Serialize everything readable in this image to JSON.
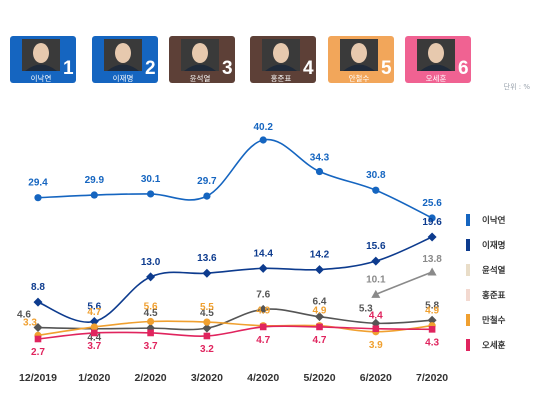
{
  "header": {
    "unit": "단위 : %",
    "cards": [
      {
        "number": "1",
        "name": "이낙연",
        "color": "#1565c0"
      },
      {
        "number": "2",
        "name": "이재명",
        "color": "#1565c0"
      },
      {
        "number": "3",
        "name": "윤석열",
        "color": "#5d4037"
      },
      {
        "number": "4",
        "name": "홍준표",
        "color": "#5d4037"
      },
      {
        "number": "5",
        "name": "안철수",
        "color": "#f2a65a"
      },
      {
        "number": "6",
        "name": "오세훈",
        "color": "#f06292"
      }
    ]
  },
  "chart_data": {
    "type": "line",
    "categories": [
      "12/2019",
      "1/2020",
      "2/2020",
      "3/2020",
      "4/2020",
      "5/2020",
      "6/2020",
      "7/2020"
    ],
    "series": [
      {
        "name": "이낙연",
        "color": "#1565c0",
        "marker": "circle",
        "values": [
          29.4,
          29.9,
          30.1,
          29.7,
          40.2,
          34.3,
          30.8,
          25.6
        ],
        "labels": [
          "29.4",
          "29.9",
          "30.1",
          "29.7",
          "40.2",
          "34.3",
          "30.8",
          "25.6"
        ]
      },
      {
        "name": "이재명",
        "color": "#0d3b8e",
        "marker": "diamond",
        "values": [
          8.8,
          5.6,
          13.0,
          13.6,
          14.4,
          14.2,
          15.6,
          19.6
        ],
        "labels": [
          "8.8",
          "5.6",
          "13.0",
          "13.6",
          "14.4",
          "14.2",
          "15.6",
          "19.6"
        ]
      },
      {
        "name": "윤석열",
        "color": "#8a8a8a",
        "marker": "triangle",
        "values": [
          null,
          null,
          null,
          null,
          null,
          null,
          10.1,
          13.8
        ],
        "labels": [
          "",
          "",
          "",
          "",
          "",
          "",
          "10.1",
          "13.8"
        ]
      },
      {
        "name": "홍준표",
        "color": "#555555",
        "marker": "diamond",
        "values": [
          4.6,
          4.4,
          4.5,
          4.5,
          7.6,
          6.4,
          5.3,
          5.8
        ],
        "labels": [
          "4.6",
          "4.4",
          "4.5",
          "4.5",
          "7.6",
          "6.4",
          "5.3",
          "5.8"
        ]
      },
      {
        "name": "안철수",
        "color": "#f0a030",
        "marker": "circle",
        "values": [
          3.3,
          4.7,
          5.6,
          5.5,
          4.9,
          4.9,
          3.9,
          4.9
        ],
        "labels": [
          "3.3",
          "4.7",
          "5.6",
          "5.5",
          "4.9",
          "4.9",
          "3.9",
          "4.9"
        ]
      },
      {
        "name": "오세훈",
        "color": "#e0245e",
        "marker": "square",
        "values": [
          2.7,
          3.7,
          3.7,
          3.2,
          4.7,
          4.7,
          4.4,
          4.3
        ],
        "labels": [
          "2.7",
          "3.7",
          "3.7",
          "3.2",
          "4.7",
          "4.7",
          "4.4",
          "4.3"
        ]
      }
    ],
    "legend": {
      "position": "right",
      "items": [
        {
          "name": "이낙연",
          "color": "#1565c0"
        },
        {
          "name": "이재명",
          "color": "#0d3b8e"
        },
        {
          "name": "윤석열",
          "color": "#e9ddc8"
        },
        {
          "name": "홍준표",
          "color": "#f3d9d0"
        },
        {
          "name": "만철수",
          "color": "#f0a030"
        },
        {
          "name": "오세훈",
          "color": "#e0245e"
        }
      ]
    },
    "grid": false
  }
}
